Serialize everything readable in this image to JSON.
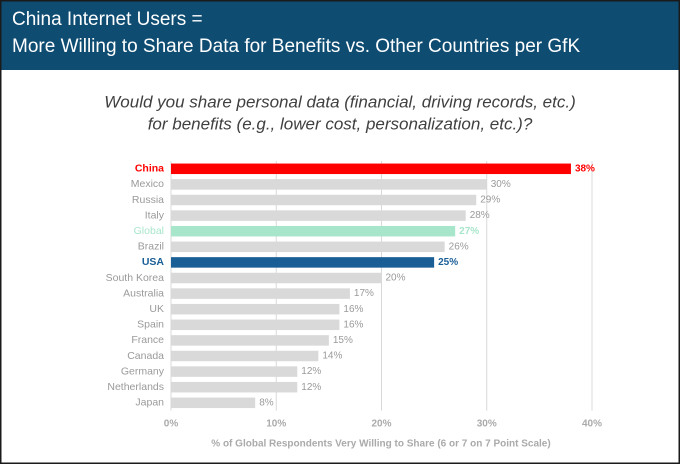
{
  "chart_data": {
    "type": "bar",
    "orientation": "horizontal",
    "title": [
      "China Internet Users =",
      "More Willing to Share Data for Benefits vs. Other Countries per GfK"
    ],
    "subtitle": [
      "Would you share personal data (financial, driving records, etc.)",
      "for benefits (e.g., lower cost, personalization, etc.)?"
    ],
    "x_label": "% of Global Respondents Very Willing to Share (6 or 7 on 7 Point Scale)",
    "categories": [
      "China",
      "Mexico",
      "Russia",
      "Italy",
      "Global",
      "Brazil",
      "USA",
      "South Korea",
      "Australia",
      "UK",
      "Spain",
      "France",
      "Canada",
      "Germany",
      "Netherlands",
      "Japan"
    ],
    "values": [
      38,
      30,
      29,
      28,
      27,
      26,
      25,
      20,
      17,
      16,
      16,
      15,
      14,
      12,
      12,
      8
    ],
    "value_labels": [
      "38%",
      "30%",
      "29%",
      "28%",
      "27%",
      "26%",
      "25%",
      "20%",
      "17%",
      "16%",
      "16%",
      "15%",
      "14%",
      "12%",
      "12%",
      "8%"
    ],
    "colors": [
      "#ff0000",
      "#d9d9d9",
      "#d9d9d9",
      "#d9d9d9",
      "#a8e6cc",
      "#d9d9d9",
      "#1a5e96",
      "#d9d9d9",
      "#d9d9d9",
      "#d9d9d9",
      "#d9d9d9",
      "#d9d9d9",
      "#d9d9d9",
      "#d9d9d9",
      "#d9d9d9",
      "#d9d9d9"
    ],
    "xlim": [
      0,
      40
    ],
    "xticks": [
      {
        "value": 0,
        "label": "0%"
      },
      {
        "value": 10,
        "label": "10%"
      },
      {
        "value": 20,
        "label": "20%"
      },
      {
        "value": 30,
        "label": "30%"
      },
      {
        "value": 40,
        "label": "40%"
      }
    ],
    "grid": true
  }
}
